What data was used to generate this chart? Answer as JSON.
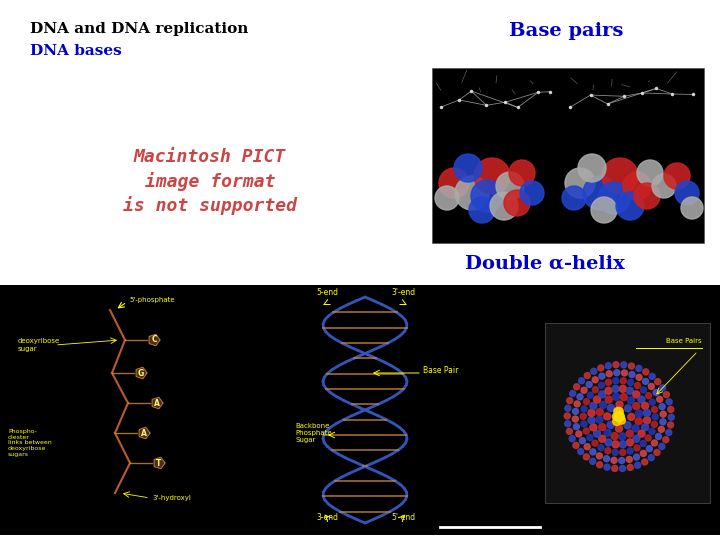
{
  "title_line1": "DNA and DNA replication",
  "title_line2": "DNA bases",
  "title1_color": "#000000",
  "title2_color": "#0000cc",
  "label_base_pairs": "Base pairs",
  "label_base_pairs_color": "#0000cc",
  "label_double_helix": "Double α-helix",
  "label_double_helix_color": "#0000cc",
  "pict_text_line1": "Macintosh PICT",
  "pict_text_line2": "image format",
  "pict_text_line3": "is not supported",
  "pict_text_color": "#cc4444",
  "bg_color": "#ffffff",
  "image_bg_color": "#000000",
  "bottom_image_bg": "#000000",
  "font_size_title": 11,
  "font_size_labels": 13,
  "font_size_pict": 13
}
